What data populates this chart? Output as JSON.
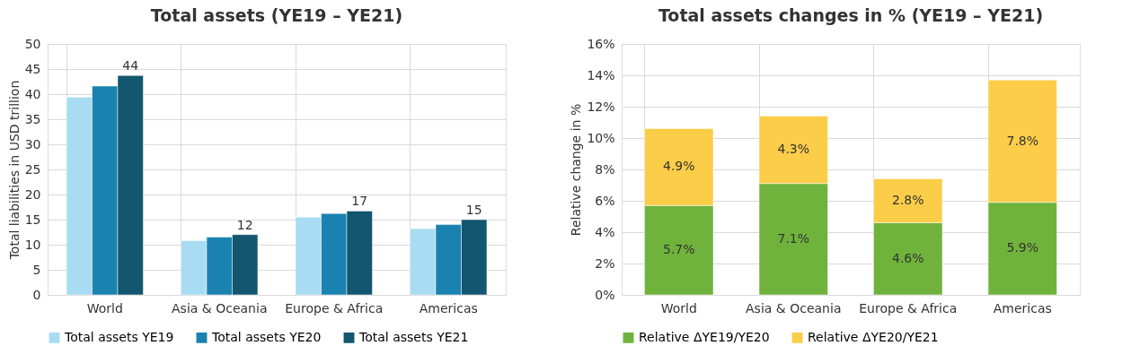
{
  "chart_data": [
    {
      "type": "bar",
      "title": "Total assets (YE19 – YE21)",
      "ylabel": "Total liabilities in USD trillion",
      "categories": [
        "World",
        "Asia & Oceania",
        "Europe & Africa",
        "Americas"
      ],
      "ylim": [
        0,
        50
      ],
      "yticks": [
        0,
        5,
        10,
        15,
        20,
        25,
        30,
        35,
        40,
        45,
        50
      ],
      "grid": true,
      "legend": "bottom",
      "series": [
        {
          "name": "Total assets YE19",
          "color": "#a8dcf2",
          "values": [
            39.4,
            10.8,
            15.5,
            13.2
          ]
        },
        {
          "name": "Total assets YE20",
          "color": "#1a82b0",
          "values": [
            41.6,
            11.5,
            16.2,
            14.0
          ]
        },
        {
          "name": "Total assets YE21",
          "color": "#125670",
          "values": [
            43.7,
            12.0,
            16.7,
            15.0
          ],
          "value_labels": [
            "44",
            "12",
            "17",
            "15"
          ]
        }
      ]
    },
    {
      "type": "bar",
      "title": "Total assets changes in % (YE19 – YE21)",
      "ylabel": "Relative change in %",
      "categories": [
        "World",
        "Asia & Oceania",
        "Europe & Africa",
        "Americas"
      ],
      "ylim": [
        0,
        16
      ],
      "yticks": [
        {
          "value": 0,
          "label": "0%"
        },
        {
          "value": 2,
          "label": "2%"
        },
        {
          "value": 4,
          "label": "4%"
        },
        {
          "value": 6,
          "label": "6%"
        },
        {
          "value": 8,
          "label": "8%"
        },
        {
          "value": 10,
          "label": "10%"
        },
        {
          "value": 12,
          "label": "12%"
        },
        {
          "value": 14,
          "label": "14%"
        },
        {
          "value": 16,
          "label": "16%"
        }
      ],
      "grid": true,
      "legend": "bottom",
      "stacked": true,
      "series": [
        {
          "name": "Relative ΔYE19/YE20",
          "color": "#70b33c",
          "values": [
            5.7,
            7.1,
            4.6,
            5.9
          ],
          "value_labels": [
            "5.7%",
            "7.1%",
            "4.6%",
            "5.9%"
          ]
        },
        {
          "name": "Relative ΔYE20/YE21",
          "color": "#fbcd48",
          "values": [
            4.9,
            4.3,
            2.8,
            7.8
          ],
          "value_labels": [
            "4.9%",
            "4.3%",
            "2.8%",
            "7.8%"
          ]
        }
      ]
    }
  ]
}
